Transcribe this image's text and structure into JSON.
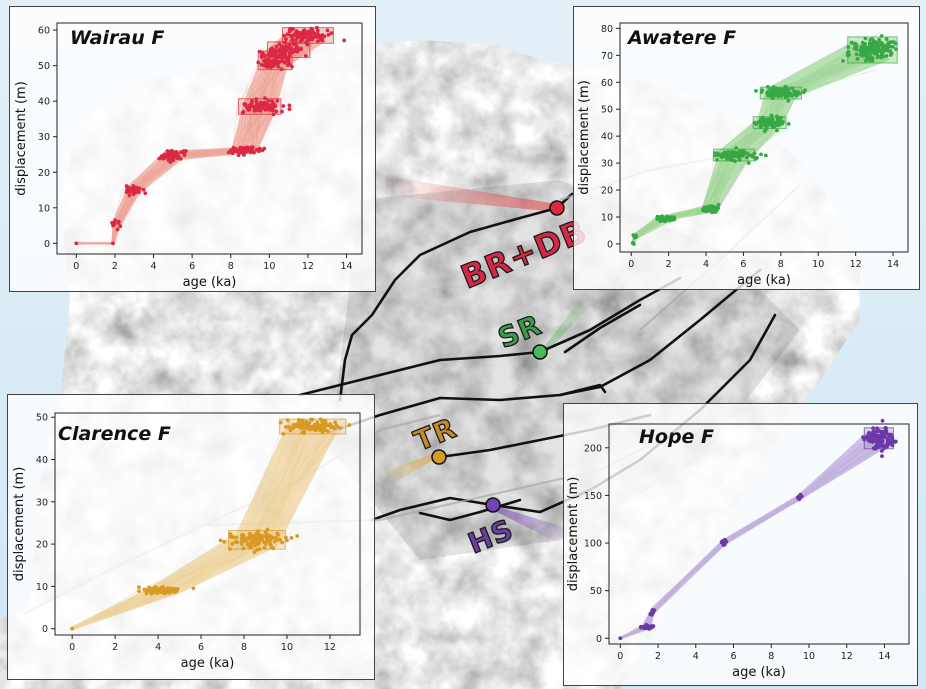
{
  "sites": {
    "br_db": {
      "label": "BR+DB",
      "color": "#d62746"
    },
    "sr": {
      "label": "SR",
      "color": "#3a9e48"
    },
    "tr": {
      "label": "TR",
      "color": "#c68c24"
    },
    "hs": {
      "label": "HS",
      "color": "#6b3fa0"
    }
  },
  "chart_data": [
    {
      "id": "wairau",
      "type": "scatter",
      "title": "Wairau F",
      "xlabel": "age (ka)",
      "ylabel": "displacement (m)",
      "color": "#dc2845",
      "envelope_color": "#e8806b",
      "xlim": [
        -1,
        14.8
      ],
      "ylim": [
        -3,
        62
      ],
      "xticks": [
        0,
        2,
        4,
        6,
        8,
        10,
        12,
        14
      ],
      "yticks": [
        0,
        10,
        20,
        30,
        40,
        50,
        60
      ],
      "clusters": [
        {
          "x": 0,
          "y": 0,
          "sx": 0.05,
          "sy": 0.2,
          "n": 1,
          "box": false
        },
        {
          "x": 1.9,
          "y": 0,
          "sx": 0.05,
          "sy": 0.2,
          "n": 1,
          "box": false
        },
        {
          "x": 2.05,
          "y": 5,
          "sx": 0.1,
          "sy": 0.8,
          "n": 10,
          "box": false
        },
        {
          "x": 2.95,
          "y": 15,
          "sx": 0.2,
          "sy": 0.6,
          "n": 40,
          "box": false
        },
        {
          "x": 5.05,
          "y": 24.8,
          "sx": 0.3,
          "sy": 0.7,
          "n": 60,
          "box": false
        },
        {
          "x": 8.7,
          "y": 26.2,
          "sx": 0.4,
          "sy": 0.5,
          "n": 60,
          "box": false
        },
        {
          "x": 9.5,
          "y": 38.5,
          "sx": 0.5,
          "sy": 1.0,
          "n": 80,
          "box": true
        },
        {
          "x": 10.3,
          "y": 51.5,
          "sx": 0.4,
          "sy": 1.2,
          "n": 80,
          "box": true
        },
        {
          "x": 11.0,
          "y": 54.5,
          "sx": 0.5,
          "sy": 1.0,
          "n": 60,
          "box": true
        },
        {
          "x": 12.0,
          "y": 58.5,
          "sx": 0.6,
          "sy": 1.0,
          "n": 90,
          "box": true
        }
      ]
    },
    {
      "id": "awatere",
      "type": "scatter",
      "title": "Awatere F",
      "xlabel": "age (ka)",
      "ylabel": "displacement (m)",
      "color": "#37a844",
      "envelope_color": "#7ac56b",
      "xlim": [
        -0.6,
        14.8
      ],
      "ylim": [
        -3,
        82
      ],
      "xticks": [
        0,
        2,
        4,
        6,
        8,
        10,
        12,
        14
      ],
      "yticks": [
        0,
        10,
        20,
        30,
        40,
        50,
        60,
        70,
        80
      ],
      "clusters": [
        {
          "x": 0.1,
          "y": 0.2,
          "sx": 0.05,
          "sy": 0.3,
          "n": 3,
          "box": false
        },
        {
          "x": 0.2,
          "y": 2.8,
          "sx": 0.06,
          "sy": 0.6,
          "n": 6,
          "box": false
        },
        {
          "x": 1.8,
          "y": 9.5,
          "sx": 0.25,
          "sy": 0.4,
          "n": 40,
          "box": false
        },
        {
          "x": 4.2,
          "y": 13,
          "sx": 0.25,
          "sy": 0.6,
          "n": 50,
          "box": false
        },
        {
          "x": 5.5,
          "y": 33,
          "sx": 0.5,
          "sy": 1.0,
          "n": 90,
          "box": true
        },
        {
          "x": 7.4,
          "y": 45,
          "sx": 0.4,
          "sy": 1.0,
          "n": 80,
          "box": true
        },
        {
          "x": 8.0,
          "y": 56,
          "sx": 0.5,
          "sy": 1.0,
          "n": 80,
          "box": true
        },
        {
          "x": 12.9,
          "y": 72,
          "sx": 0.6,
          "sy": 2.2,
          "n": 130,
          "box": true
        }
      ]
    },
    {
      "id": "clarence",
      "type": "scatter",
      "title": "Clarence F",
      "xlabel": "age (ka)",
      "ylabel": "displacement (m)",
      "color": "#d89a24",
      "envelope_color": "#e8c070",
      "xlim": [
        -0.8,
        13.4
      ],
      "ylim": [
        -1.5,
        51
      ],
      "xticks": [
        0,
        2,
        4,
        6,
        8,
        10,
        12
      ],
      "yticks": [
        0,
        10,
        20,
        30,
        40,
        50
      ],
      "clusters": [
        {
          "x": 0,
          "y": 0,
          "sx": 0.05,
          "sy": 0.2,
          "n": 1,
          "box": false
        },
        {
          "x": 4.3,
          "y": 9,
          "sx": 0.45,
          "sy": 0.4,
          "n": 80,
          "box": false
        },
        {
          "x": 8.6,
          "y": 21,
          "sx": 0.6,
          "sy": 1.0,
          "n": 110,
          "box": true
        },
        {
          "x": 11.2,
          "y": 47.8,
          "sx": 0.7,
          "sy": 0.8,
          "n": 110,
          "box": true
        }
      ]
    },
    {
      "id": "hope",
      "type": "scatter",
      "title": "Hope F",
      "xlabel": "age (ka)",
      "ylabel": "displacement (m)",
      "color": "#6d38a8",
      "envelope_color": "#a98fd0",
      "xlim": [
        -0.6,
        15.3
      ],
      "ylim": [
        -6,
        225
      ],
      "xticks": [
        0,
        2,
        4,
        6,
        8,
        10,
        12,
        14
      ],
      "yticks": [
        0,
        50,
        100,
        150,
        200
      ],
      "clusters": [
        {
          "x": 0,
          "y": 0,
          "sx": 0.05,
          "sy": 0.5,
          "n": 1,
          "box": false
        },
        {
          "x": 1.4,
          "y": 12,
          "sx": 0.15,
          "sy": 1.0,
          "n": 40,
          "box": false
        },
        {
          "x": 1.7,
          "y": 28,
          "sx": 0.05,
          "sy": 2.0,
          "n": 10,
          "box": false
        },
        {
          "x": 5.5,
          "y": 101,
          "sx": 0.06,
          "sy": 1.5,
          "n": 20,
          "box": false
        },
        {
          "x": 9.5,
          "y": 148,
          "sx": 0.06,
          "sy": 1.5,
          "n": 20,
          "box": false
        },
        {
          "x": 13.7,
          "y": 210,
          "sx": 0.35,
          "sy": 5.0,
          "n": 110,
          "box": true
        }
      ]
    }
  ]
}
